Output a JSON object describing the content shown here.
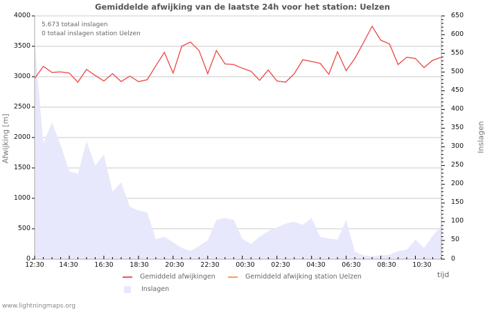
{
  "title": "Gemiddelde afwijking van de laatste 24h voor het station: Uelzen",
  "summary": {
    "total_strikes": "5.673 totaal inslagen",
    "station_strikes": "0 totaal inslagen station Uelzen"
  },
  "axes": {
    "left_label": "Afwijking  [m]",
    "right_label": "Inslagen",
    "x_label": "tijd",
    "left_ticks": [
      "4000",
      "3500",
      "3000",
      "2500",
      "2000",
      "1500",
      "1000",
      "500",
      "0"
    ],
    "right_ticks": [
      "650",
      "600",
      "550",
      "500",
      "450",
      "400",
      "350",
      "300",
      "250",
      "200",
      "150",
      "100",
      "50",
      "0"
    ],
    "x_ticks": [
      "12:30",
      "14:30",
      "16:30",
      "18:30",
      "20:30",
      "22:30",
      "00:30",
      "02:30",
      "04:30",
      "06:30",
      "08:30",
      "10:30"
    ]
  },
  "legend": {
    "series1": "Gemiddeld afwijkingen",
    "series2": "Gemiddeld afwijking station Uelzen",
    "series3": "Inslagen"
  },
  "colors": {
    "deviation": "#ee4444",
    "station_deviation": "#ff9944",
    "strikes_fill": "#e8e8fc",
    "grid": "#c8c8c8"
  },
  "footer": "www.lightningmaps.org",
  "chart_data": {
    "type": "line",
    "title": "Gemiddelde afwijking van de laatste 24h voor het station: Uelzen",
    "xlabel": "tijd",
    "ylabel": "Afwijking [m]",
    "y2label": "Inslagen",
    "ylim": [
      0,
      4000
    ],
    "y2lim": [
      0,
      650
    ],
    "grid": true,
    "legend_position": "bottom",
    "x": [
      "12:30",
      "13:00",
      "13:30",
      "14:00",
      "14:30",
      "15:00",
      "15:30",
      "16:00",
      "16:30",
      "17:00",
      "17:30",
      "18:00",
      "18:30",
      "19:00",
      "19:30",
      "20:00",
      "20:30",
      "21:00",
      "21:30",
      "22:00",
      "22:30",
      "23:00",
      "23:30",
      "00:00",
      "00:30",
      "01:00",
      "01:30",
      "02:00",
      "02:30",
      "03:00",
      "03:30",
      "04:00",
      "04:30",
      "05:00",
      "05:30",
      "06:00",
      "06:30",
      "07:00",
      "07:30",
      "08:00",
      "08:30",
      "09:00",
      "09:30",
      "10:00",
      "10:30",
      "11:00",
      "11:30",
      "12:00"
    ],
    "series": [
      {
        "name": "Gemiddeld afwijkingen",
        "axis": "left",
        "type": "line",
        "values": [
          2970,
          3170,
          3070,
          3080,
          3060,
          2910,
          3120,
          3020,
          2930,
          3050,
          2920,
          3010,
          2920,
          2950,
          3180,
          3400,
          3060,
          3500,
          3570,
          3430,
          3050,
          3430,
          3210,
          3200,
          3140,
          3090,
          2940,
          3110,
          2930,
          2910,
          3050,
          3280,
          3250,
          3220,
          3040,
          3410,
          3100,
          3300,
          3560,
          3830,
          3600,
          3540,
          3200,
          3320,
          3300,
          3150,
          3270,
          3320
        ]
      },
      {
        "name": "Gemiddeld afwijking station Uelzen",
        "axis": "left",
        "type": "line",
        "values": []
      },
      {
        "name": "Inslagen",
        "axis": "right",
        "type": "area",
        "values": [
          580,
          310,
          365,
          305,
          235,
          228,
          315,
          250,
          280,
          180,
          205,
          140,
          130,
          125,
          53,
          60,
          45,
          30,
          22,
          35,
          50,
          105,
          110,
          105,
          55,
          40,
          60,
          75,
          85,
          95,
          100,
          92,
          110,
          60,
          55,
          52,
          105,
          20,
          10,
          8,
          10,
          12,
          22,
          25,
          52,
          30,
          62,
          90
        ]
      }
    ]
  }
}
